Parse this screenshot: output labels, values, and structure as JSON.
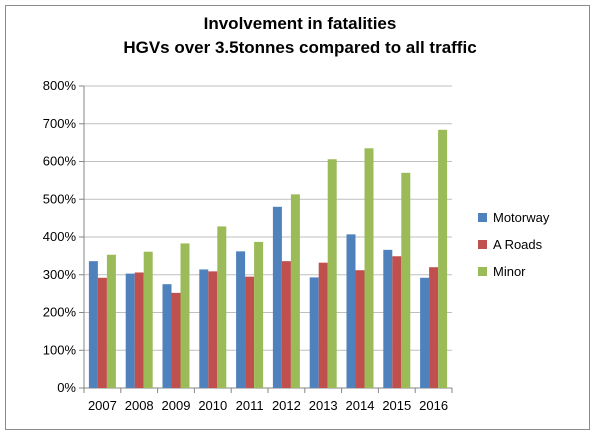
{
  "chart_data": {
    "type": "bar",
    "title": [
      "Involvement in fatalities",
      "HGVs over 3.5tonnes compared to all traffic"
    ],
    "xlabel": "",
    "ylabel": "",
    "categories": [
      "2007",
      "2008",
      "2009",
      "2010",
      "2011",
      "2012",
      "2013",
      "2014",
      "2015",
      "2016"
    ],
    "ylim": [
      0,
      800
    ],
    "yticks": [
      "0%",
      "100%",
      "200%",
      "300%",
      "400%",
      "500%",
      "600%",
      "700%",
      "800%"
    ],
    "grid": true,
    "legend_position": "right",
    "series": [
      {
        "name": "Motorway",
        "color": "#4f81bd",
        "values": [
          336,
          303,
          275,
          314,
          362,
          480,
          293,
          407,
          366,
          292
        ]
      },
      {
        "name": "A Roads",
        "color": "#c0504d",
        "values": [
          292,
          306,
          252,
          309,
          295,
          336,
          332,
          312,
          349,
          320
        ]
      },
      {
        "name": "Minor",
        "color": "#9bbb59",
        "values": [
          353,
          361,
          383,
          428,
          387,
          513,
          606,
          635,
          570,
          684
        ]
      }
    ]
  }
}
